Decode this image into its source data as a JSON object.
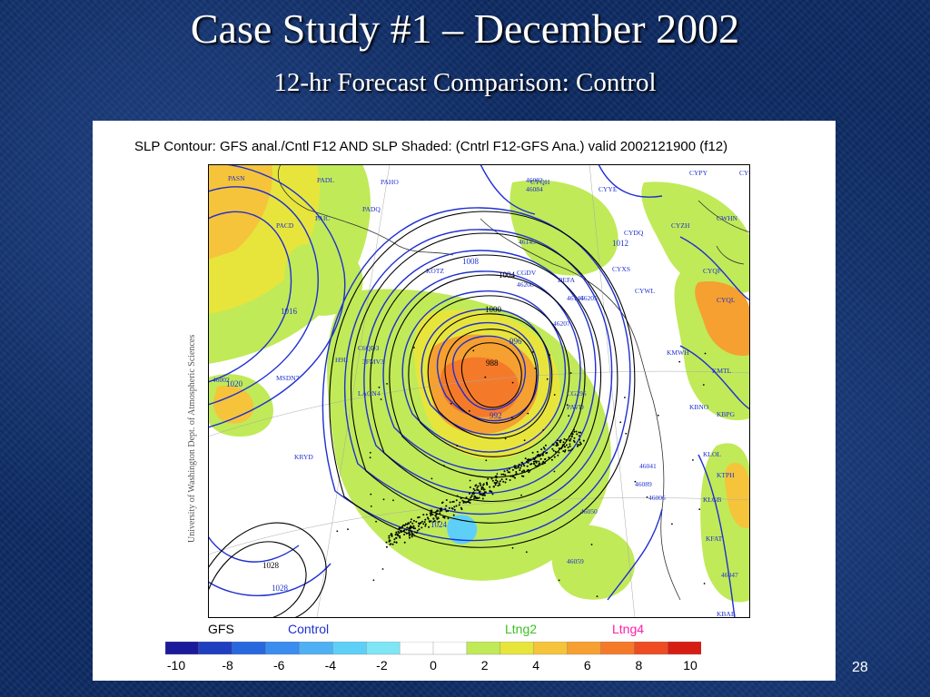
{
  "slide": {
    "title": "Case Study #1 – December 2002",
    "subtitle": "12-hr Forecast Comparison: Control",
    "number": "28"
  },
  "figure": {
    "header": "SLP Contour: GFS anal./Cntl F12 AND SLP Shaded: (Cntrl F12-GFS Ana.) valid 2002121900 (f12)",
    "credit": "University of Washington Dept. of Atmospheric Sciences",
    "legend": [
      {
        "label": "GFS",
        "color": "#000000"
      },
      {
        "label": "Control",
        "color": "#1f2fd0"
      },
      {
        "label": "Ltng2",
        "color": "#3cc020"
      },
      {
        "label": "Ltng4",
        "color": "#ff1fa8"
      }
    ],
    "contour_labels": [
      "1008",
      "1004",
      "1000",
      "996",
      "992",
      "988",
      "1012",
      "1016",
      "1020",
      "1024",
      "1028"
    ],
    "station_ids": [
      "PASN",
      "PADL",
      "PAHO",
      "PACD",
      "PADQ",
      "PAIC",
      "CYQH",
      "CYYE",
      "CYPY",
      "CYCB",
      "CWHN",
      "CYZH",
      "CYDQ",
      "CYXS",
      "CYWL",
      "CYQF",
      "CYQL",
      "KMWH",
      "KMTL",
      "KBNO",
      "KBPG",
      "KLOL",
      "KTPH",
      "KLGB",
      "KFAT",
      "KBAB",
      "46047",
      "46050",
      "46059",
      "46006",
      "46082",
      "46084",
      "46145",
      "46208",
      "46207",
      "46146",
      "46205",
      "46041",
      "46089",
      "DEFA",
      "MSDN7",
      "H9II",
      "3FMV3",
      "LAON4",
      "C6QD3",
      "KOTZ",
      "CGDV",
      "CG295",
      "PAVD",
      "KRYD",
      "46002"
    ],
    "colorbar": {
      "colors": [
        "#1a1a9a",
        "#1e3fbf",
        "#2868df",
        "#3a8cef",
        "#4fb0f3",
        "#5ed0f7",
        "#7ee6f5",
        "#ffffff",
        "#ffffff",
        "#c0ea58",
        "#e7e53c",
        "#f5c43a",
        "#f5a030",
        "#f47a2a",
        "#ee4c22",
        "#d61d14"
      ],
      "ticks": [
        "-10",
        "-8",
        "-6",
        "-4",
        "-2",
        "0",
        "2",
        "4",
        "6",
        "8",
        "10"
      ]
    }
  }
}
